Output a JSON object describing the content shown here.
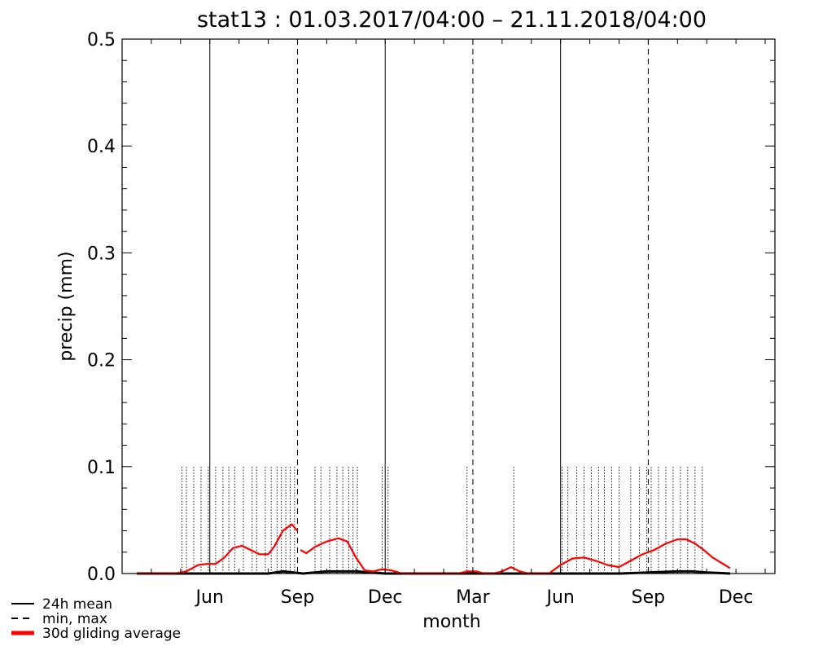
{
  "chart_data": {
    "type": "line",
    "title": "stat13 : 01.03.2017/04:00 – 21.11.2018/04:00",
    "xlabel": "month",
    "ylabel": "precip (mm)",
    "ylim": [
      0,
      0.5
    ],
    "yticks": [
      0.0,
      0.1,
      0.2,
      0.3,
      0.4,
      0.5
    ],
    "ytick_labels": [
      "0.0",
      "0.1",
      "0.2",
      "0.3",
      "0.4",
      "0.5"
    ],
    "xlim": [
      0,
      22.333
    ],
    "xticks": [
      {
        "label": "Jun",
        "month_index": 3
      },
      {
        "label": "Sep",
        "month_index": 6
      },
      {
        "label": "Dec",
        "month_index": 9
      },
      {
        "label": "Mar",
        "month_index": 12
      },
      {
        "label": "Jun",
        "month_index": 15
      },
      {
        "label": "Sep",
        "month_index": 18
      },
      {
        "label": "Dec",
        "month_index": 21
      }
    ],
    "boundary_lines": [
      {
        "month_index": 0,
        "style": "dashed"
      },
      {
        "month_index": 3,
        "style": "solid"
      },
      {
        "month_index": 6,
        "style": "dashed"
      },
      {
        "month_index": 9,
        "style": "solid"
      },
      {
        "month_index": 12,
        "style": "dashed"
      },
      {
        "month_index": 15,
        "style": "solid"
      },
      {
        "month_index": 18,
        "style": "dashed"
      }
    ],
    "grid": false,
    "legend_position": "bottom-left",
    "colors": {
      "mean": "#000000",
      "minmax": "#000000",
      "gliding": "#ff0000"
    },
    "series": [
      {
        "name": "24h mean",
        "style": "solid",
        "x": [
          0.5,
          2,
          3,
          4,
          5,
          5.5,
          6.2,
          7,
          8,
          9,
          10,
          11,
          12,
          13,
          14,
          15,
          16,
          17,
          18,
          19,
          19.5,
          20,
          20.8
        ],
        "values": [
          0.0,
          0.0,
          0.0,
          0.0,
          0.0,
          0.002,
          0.0,
          0.002,
          0.002,
          0.0,
          0.0,
          0.0,
          0.0,
          0.0,
          0.0,
          0.0,
          0.0,
          0.0,
          0.001,
          0.002,
          0.002,
          0.001,
          0.0
        ]
      },
      {
        "name": "min, max",
        "style": "dashed",
        "max_spikes": [
          {
            "month_index": 2.05,
            "value": 0.1
          },
          {
            "month_index": 2.2,
            "value": 0.1
          },
          {
            "month_index": 2.45,
            "value": 0.1
          },
          {
            "month_index": 2.7,
            "value": 0.1
          },
          {
            "month_index": 2.95,
            "value": 0.1
          },
          {
            "month_index": 3.2,
            "value": 0.1
          },
          {
            "month_index": 3.45,
            "value": 0.1
          },
          {
            "month_index": 3.65,
            "value": 0.1
          },
          {
            "month_index": 3.85,
            "value": 0.1
          },
          {
            "month_index": 4.15,
            "value": 0.1
          },
          {
            "month_index": 4.45,
            "value": 0.1
          },
          {
            "month_index": 4.6,
            "value": 0.1
          },
          {
            "month_index": 4.9,
            "value": 0.1
          },
          {
            "month_index": 5.1,
            "value": 0.1
          },
          {
            "month_index": 5.3,
            "value": 0.1
          },
          {
            "month_index": 5.45,
            "value": 0.1
          },
          {
            "month_index": 5.6,
            "value": 0.1
          },
          {
            "month_index": 5.75,
            "value": 0.1
          },
          {
            "month_index": 5.9,
            "value": 0.1
          },
          {
            "month_index": 6.6,
            "value": 0.1
          },
          {
            "month_index": 6.8,
            "value": 0.1
          },
          {
            "month_index": 7.1,
            "value": 0.1
          },
          {
            "month_index": 7.35,
            "value": 0.1
          },
          {
            "month_index": 7.55,
            "value": 0.1
          },
          {
            "month_index": 7.75,
            "value": 0.1
          },
          {
            "month_index": 7.9,
            "value": 0.1
          },
          {
            "month_index": 8.05,
            "value": 0.1
          },
          {
            "month_index": 8.9,
            "value": 0.1
          },
          {
            "month_index": 9.1,
            "value": 0.1
          },
          {
            "month_index": 11.8,
            "value": 0.1
          },
          {
            "month_index": 13.4,
            "value": 0.1
          },
          {
            "month_index": 15.05,
            "value": 0.1
          },
          {
            "month_index": 15.25,
            "value": 0.1
          },
          {
            "month_index": 15.55,
            "value": 0.1
          },
          {
            "month_index": 15.8,
            "value": 0.1
          },
          {
            "month_index": 16.05,
            "value": 0.1
          },
          {
            "month_index": 16.3,
            "value": 0.1
          },
          {
            "month_index": 16.5,
            "value": 0.1
          },
          {
            "month_index": 16.75,
            "value": 0.1
          },
          {
            "month_index": 17.0,
            "value": 0.1
          },
          {
            "month_index": 17.4,
            "value": 0.1
          },
          {
            "month_index": 17.7,
            "value": 0.1
          },
          {
            "month_index": 17.95,
            "value": 0.1
          },
          {
            "month_index": 18.1,
            "value": 0.1
          },
          {
            "month_index": 18.35,
            "value": 0.1
          },
          {
            "month_index": 18.6,
            "value": 0.1
          },
          {
            "month_index": 18.85,
            "value": 0.1
          },
          {
            "month_index": 19.1,
            "value": 0.1
          },
          {
            "month_index": 19.35,
            "value": 0.1
          },
          {
            "month_index": 19.6,
            "value": 0.1
          },
          {
            "month_index": 19.85,
            "value": 0.1
          }
        ]
      },
      {
        "name": "30d gliding average",
        "style": "thick-solid",
        "segments": [
          {
            "x": [
              0.5,
              1.2,
              1.8,
              2.2,
              2.6,
              2.9,
              3.2,
              3.5,
              3.8,
              4.1,
              4.4,
              4.7,
              5.0,
              5.2,
              5.5,
              5.8,
              6.0
            ],
            "values": [
              0.0,
              0.0,
              0.0,
              0.002,
              0.008,
              0.009,
              0.009,
              0.015,
              0.024,
              0.026,
              0.022,
              0.018,
              0.018,
              0.025,
              0.04,
              0.046,
              0.04
            ]
          },
          {
            "x": [
              6.1,
              6.3,
              6.6,
              7.0,
              7.4,
              7.7,
              8.0,
              8.3,
              8.6,
              8.9,
              9.2,
              9.6,
              10.0,
              10.5,
              11.0,
              11.5,
              11.8,
              12.1,
              12.4,
              12.7,
              13.0,
              13.3,
              13.6,
              13.9,
              14.2,
              14.6,
              15.0,
              15.4,
              15.8,
              16.2,
              16.6,
              17.0,
              17.4,
              17.8,
              18.2,
              18.6,
              19.0,
              19.3,
              19.6,
              19.9,
              20.2,
              20.5,
              20.8
            ],
            "values": [
              0.022,
              0.019,
              0.025,
              0.03,
              0.033,
              0.03,
              0.015,
              0.003,
              0.002,
              0.004,
              0.003,
              0.0,
              0.0,
              0.0,
              0.0,
              0.0,
              0.002,
              0.002,
              0.0,
              0.0,
              0.002,
              0.006,
              0.002,
              0.0,
              0.0,
              0.0,
              0.008,
              0.014,
              0.015,
              0.012,
              0.008,
              0.006,
              0.012,
              0.018,
              0.022,
              0.028,
              0.032,
              0.032,
              0.028,
              0.022,
              0.015,
              0.01,
              0.005
            ]
          }
        ]
      }
    ],
    "legend": [
      {
        "label": "24h mean",
        "style": "solid",
        "color": "#000000"
      },
      {
        "label": "min, max",
        "style": "dashed",
        "color": "#000000"
      },
      {
        "label": "30d gliding average",
        "style": "thick-solid",
        "color": "#ff0000"
      }
    ]
  }
}
